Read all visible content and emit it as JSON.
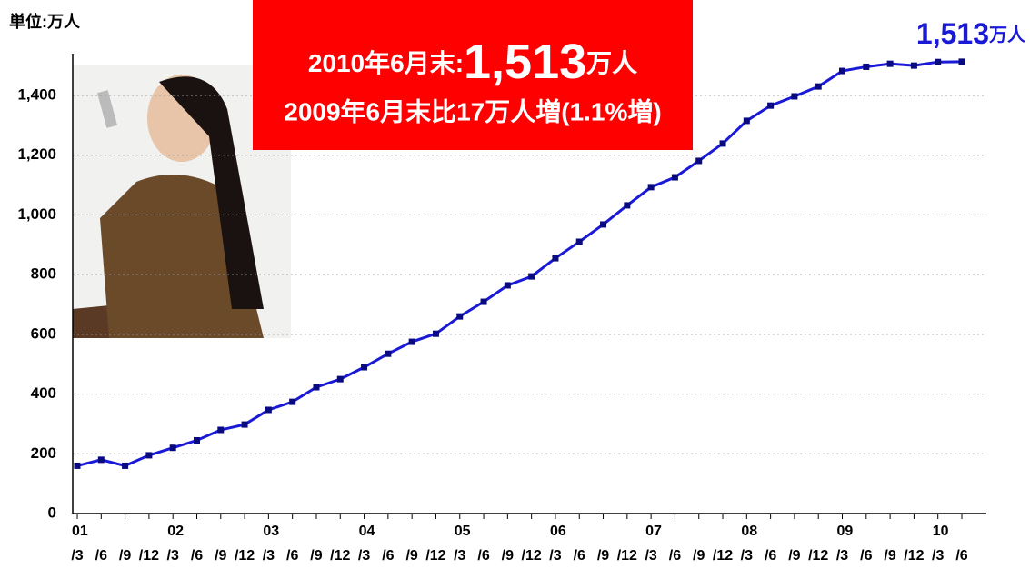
{
  "chart_data": {
    "type": "line",
    "unit_label": "単位:万人",
    "callout": {
      "prefix": "2010年6月末:",
      "value": "1,513",
      "unit": "万人",
      "line2": "2009年6月末比17万人増(1.1%増)"
    },
    "end_label": {
      "value": "1,513",
      "unit": "万人"
    },
    "year_labels": [
      "01",
      "02",
      "03",
      "04",
      "05",
      "06",
      "07",
      "08",
      "09",
      "10"
    ],
    "categories": [
      "/3",
      "/6",
      "/9",
      "/12",
      "/3",
      "/6",
      "/9",
      "/12",
      "/3",
      "/6",
      "/9",
      "/12",
      "/3",
      "/6",
      "/9",
      "/12",
      "/3",
      "/6",
      "/9",
      "/12",
      "/3",
      "/6",
      "/9",
      "/12",
      "/3",
      "/6",
      "/9",
      "/12",
      "/3",
      "/6",
      "/9",
      "/12",
      "/3",
      "/6",
      "/9",
      "/12",
      "/3",
      "/6"
    ],
    "series": [
      {
        "color": "#1a1ad6",
        "marker_color": "#0a0a80",
        "values": [
          160,
          180,
          160,
          195,
          220,
          245,
          280,
          298,
          347,
          374,
          423,
          450,
          490,
          535,
          575,
          602,
          660,
          709,
          764,
          794,
          855,
          910,
          968,
          1032,
          1093,
          1126,
          1181,
          1239,
          1315,
          1366,
          1397,
          1430,
          1482,
          1496,
          1506,
          1500,
          1512,
          1513
        ]
      }
    ],
    "ylim": [
      0,
      1540
    ],
    "yticks": [
      0,
      200,
      400,
      600,
      800,
      {
        "value": 1000,
        "label": "1,000"
      },
      {
        "value": 1200,
        "label": "1,200"
      },
      {
        "value": 1400,
        "label": "1,400"
      }
    ],
    "grid": true
  }
}
